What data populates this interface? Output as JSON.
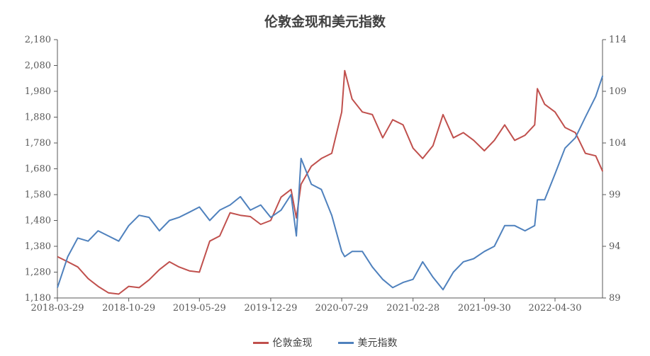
{
  "chart_data": {
    "type": "line",
    "title": "伦敦金现和美元指数",
    "x_tick_labels": [
      "2018-03-29",
      "2018-10-29",
      "2019-05-29",
      "2019-12-29",
      "2020-07-29",
      "2021-02-28",
      "2021-09-30",
      "2022-04-30"
    ],
    "left_axis": {
      "ylim": [
        1180,
        2180
      ],
      "ticks": [
        "1,180",
        "1,280",
        "1,380",
        "1,480",
        "1,580",
        "1,680",
        "1,780",
        "1,880",
        "1,980",
        "2,080",
        "2,180"
      ]
    },
    "right_axis": {
      "ylim": [
        89,
        114
      ],
      "ticks": [
        "89",
        "94",
        "99",
        "104",
        "109",
        "114"
      ]
    },
    "legend_position": "bottom",
    "x": [
      "2018-03-29",
      "2018-04-29",
      "2018-05-29",
      "2018-06-29",
      "2018-07-29",
      "2018-08-29",
      "2018-09-29",
      "2018-10-29",
      "2018-11-29",
      "2018-12-29",
      "2019-01-29",
      "2019-02-28",
      "2019-03-29",
      "2019-04-29",
      "2019-05-29",
      "2019-06-29",
      "2019-07-29",
      "2019-08-29",
      "2019-09-29",
      "2019-10-29",
      "2019-11-29",
      "2019-12-29",
      "2020-01-29",
      "2020-02-28",
      "2020-03-15",
      "2020-03-29",
      "2020-04-29",
      "2020-05-29",
      "2020-06-29",
      "2020-07-29",
      "2020-08-07",
      "2020-08-29",
      "2020-09-29",
      "2020-10-29",
      "2020-11-29",
      "2020-12-29",
      "2021-01-29",
      "2021-02-28",
      "2021-03-29",
      "2021-04-29",
      "2021-05-29",
      "2021-06-29",
      "2021-07-29",
      "2021-08-29",
      "2021-09-30",
      "2021-10-30",
      "2021-11-30",
      "2021-12-30",
      "2022-01-30",
      "2022-02-28",
      "2022-03-08",
      "2022-03-30",
      "2022-04-30",
      "2022-05-30",
      "2022-06-30",
      "2022-07-30",
      "2022-08-30",
      "2022-09-20"
    ],
    "series": [
      {
        "name": "伦敦金现",
        "axis": "left",
        "color": "#c0504d",
        "values": [
          1340,
          1320,
          1300,
          1255,
          1225,
          1200,
          1195,
          1225,
          1220,
          1250,
          1290,
          1320,
          1300,
          1285,
          1280,
          1400,
          1420,
          1510,
          1500,
          1495,
          1465,
          1480,
          1570,
          1600,
          1490,
          1620,
          1690,
          1720,
          1740,
          1900,
          2060,
          1950,
          1900,
          1890,
          1800,
          1870,
          1850,
          1760,
          1720,
          1770,
          1890,
          1800,
          1820,
          1790,
          1750,
          1790,
          1850,
          1790,
          1810,
          1850,
          1990,
          1930,
          1900,
          1840,
          1820,
          1740,
          1730,
          1670
        ]
      },
      {
        "name": "美元指数",
        "axis": "right",
        "color": "#4f81bd",
        "values": [
          90.0,
          93.0,
          94.8,
          94.5,
          95.5,
          95.0,
          94.5,
          96.0,
          97.0,
          96.8,
          95.5,
          96.5,
          96.8,
          97.3,
          97.8,
          96.5,
          97.5,
          98.0,
          98.8,
          97.5,
          98.0,
          96.8,
          97.5,
          99.0,
          95.0,
          102.5,
          100.0,
          99.5,
          97.0,
          93.5,
          93.0,
          93.5,
          93.5,
          92.0,
          90.8,
          90.0,
          90.5,
          90.8,
          92.5,
          91.0,
          89.8,
          91.5,
          92.5,
          92.8,
          93.5,
          94.0,
          96.0,
          96.0,
          95.5,
          96.0,
          98.5,
          98.5,
          101.0,
          103.5,
          104.5,
          106.5,
          108.5,
          110.5
        ]
      }
    ]
  }
}
